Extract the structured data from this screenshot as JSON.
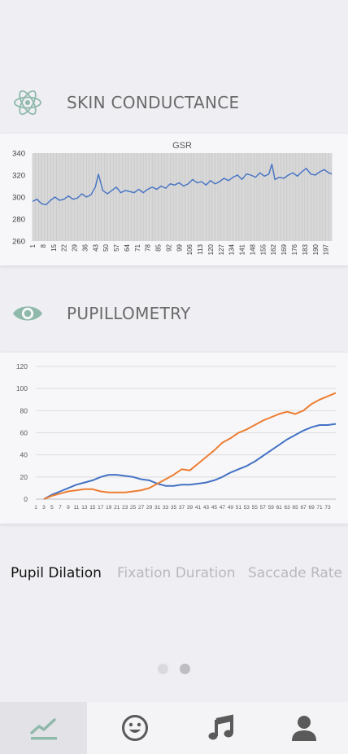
{
  "sections": {
    "skin": {
      "title": "SKIN CONDUCTANCE",
      "icon": "atom-icon"
    },
    "pupil": {
      "title": "PUPILLOMETRY",
      "icon": "eye-icon"
    }
  },
  "colors": {
    "background": "#efeff3",
    "card": "#f7f7f9",
    "accent_teal": "#8fb9aa",
    "series_blue": "#4472c4",
    "series_orange": "#ed7d31",
    "nav_icon": "#5a5a5a",
    "nav_active_bg": "#e3e3e7"
  },
  "tabs": [
    {
      "label": "Pupil Dilation",
      "active": true
    },
    {
      "label": "Fixation Duration",
      "active": false
    },
    {
      "label": "Saccade Rate",
      "active": false
    }
  ],
  "pager": {
    "pages": 2,
    "current": 2
  },
  "bottom_nav": [
    {
      "icon": "chart-line-icon",
      "active": true
    },
    {
      "icon": "smile-icon",
      "active": false
    },
    {
      "icon": "music-icon",
      "active": false
    },
    {
      "icon": "user-icon",
      "active": false
    }
  ],
  "chart_data": [
    {
      "type": "line",
      "title": "GSR",
      "ylim": [
        260,
        340
      ],
      "yticks": [
        260,
        280,
        300,
        320,
        340
      ],
      "xticks": [
        "1",
        "8",
        "15",
        "22",
        "29",
        "36",
        "43",
        "50",
        "57",
        "64",
        "71",
        "78",
        "85",
        "92",
        "99",
        "106",
        "113",
        "120",
        "127",
        "134",
        "141",
        "148",
        "155",
        "162",
        "169",
        "176",
        "183",
        "190",
        "197"
      ],
      "grid": "vertical",
      "series": [
        {
          "x": [
            1,
            4,
            7,
            10,
            13,
            16,
            19,
            22,
            25,
            28,
            31,
            34,
            37,
            40,
            43,
            45,
            48,
            51,
            54,
            57,
            60,
            63,
            66,
            69,
            72,
            75,
            78,
            81,
            84,
            87,
            90,
            93,
            96,
            99,
            102,
            105,
            108,
            111,
            114,
            117,
            120,
            123,
            126,
            129,
            132,
            135,
            138,
            141,
            144,
            147,
            150,
            153,
            156,
            159,
            161,
            163,
            166,
            169,
            172,
            175,
            178,
            181,
            184,
            187,
            190,
            193,
            196,
            199,
            201
          ],
          "values": [
            296,
            298,
            294,
            293,
            297,
            300,
            297,
            298,
            301,
            298,
            299,
            303,
            300,
            302,
            309,
            321,
            306,
            303,
            306,
            309,
            304,
            306,
            305,
            304,
            307,
            304,
            307,
            309,
            307,
            310,
            308,
            312,
            311,
            313,
            310,
            312,
            316,
            313,
            314,
            311,
            315,
            312,
            314,
            317,
            315,
            318,
            320,
            316,
            321,
            320,
            318,
            322,
            319,
            321,
            330,
            316,
            318,
            317,
            320,
            322,
            319,
            323,
            326,
            321,
            320,
            323,
            325,
            322,
            321
          ]
        }
      ]
    },
    {
      "type": "line",
      "ylim": [
        0,
        120
      ],
      "yticks": [
        0,
        20,
        40,
        60,
        80,
        100,
        120
      ],
      "xticks": [
        "1",
        "3",
        "5",
        "7",
        "9",
        "11",
        "13",
        "15",
        "17",
        "19",
        "21",
        "23",
        "25",
        "27",
        "29",
        "31",
        "33",
        "35",
        "37",
        "39",
        "41",
        "43",
        "45",
        "47",
        "49",
        "51",
        "53",
        "55",
        "57",
        "59",
        "61",
        "63",
        "65",
        "67",
        "69",
        "71",
        "73"
      ],
      "grid": "horizontal",
      "series": [
        {
          "x": [
            3,
            5,
            7,
            9,
            11,
            13,
            15,
            17,
            19,
            21,
            23,
            25,
            27,
            29,
            31,
            33,
            35,
            37,
            39,
            41,
            43,
            45,
            47,
            49,
            51,
            53,
            55,
            57,
            59,
            61,
            63,
            65,
            67,
            69,
            71,
            73,
            75
          ],
          "values": [
            0,
            4,
            7,
            10,
            13,
            15,
            17,
            20,
            22,
            22,
            21,
            20,
            18,
            17,
            14,
            12,
            12,
            13,
            13,
            14,
            15,
            17,
            20,
            24,
            27,
            30,
            34,
            39,
            44,
            49,
            54,
            58,
            62,
            65,
            67,
            67,
            68
          ]
        },
        {
          "x": [
            3,
            5,
            7,
            9,
            11,
            13,
            15,
            17,
            19,
            21,
            23,
            25,
            27,
            29,
            31,
            33,
            35,
            37,
            39,
            41,
            43,
            45,
            47,
            49,
            51,
            53,
            55,
            57,
            59,
            61,
            63,
            65,
            67,
            69,
            71,
            73,
            75
          ],
          "values": [
            0,
            3,
            5,
            7,
            8,
            9,
            9,
            7,
            6,
            6,
            6,
            7,
            8,
            10,
            14,
            18,
            22,
            27,
            26,
            32,
            38,
            44,
            51,
            55,
            60,
            63,
            67,
            71,
            74,
            77,
            79,
            77,
            80,
            86,
            90,
            93,
            96
          ]
        }
      ]
    }
  ]
}
